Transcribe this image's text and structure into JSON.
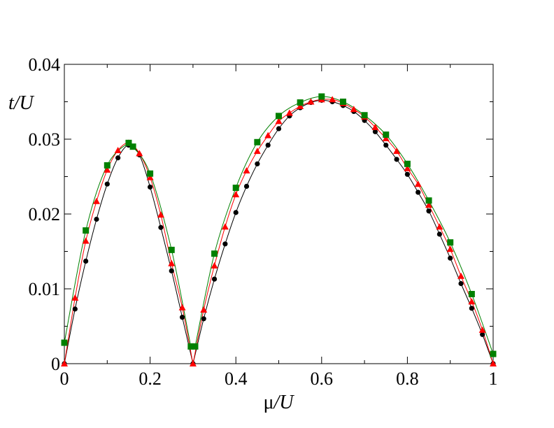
{
  "chart_data": {
    "type": "scatter",
    "xlabel_symbol": "μ",
    "xlabel_rest": "/U",
    "ylabel": "t/U",
    "xlim": [
      0,
      1
    ],
    "ylim": [
      0,
      0.04
    ],
    "x_ticks": [
      0,
      0.2,
      0.4,
      0.6,
      0.8,
      1
    ],
    "x_tick_labels": [
      "0",
      "0.2",
      "0.4",
      "0.6",
      "0.8",
      "1"
    ],
    "y_ticks": [
      0,
      0.01,
      0.02,
      0.03,
      0.04
    ],
    "y_tick_labels": [
      "0",
      "0.01",
      "0.02",
      "0.03",
      "0.04"
    ],
    "grid": false,
    "series": [
      {
        "marker": "circle",
        "color": "#000000",
        "x": [
          0,
          0.025,
          0.05,
          0.075,
          0.1,
          0.125,
          0.15,
          0.175,
          0.2,
          0.225,
          0.25,
          0.275,
          0.3,
          0.325,
          0.35,
          0.375,
          0.4,
          0.425,
          0.45,
          0.475,
          0.5,
          0.525,
          0.55,
          0.575,
          0.6,
          0.625,
          0.65,
          0.675,
          0.7,
          0.725,
          0.75,
          0.775,
          0.8,
          0.825,
          0.85,
          0.875,
          0.9,
          0.925,
          0.95,
          0.975,
          1.0
        ],
        "y": [
          0,
          0.0073,
          0.0137,
          0.0193,
          0.024,
          0.0275,
          0.0292,
          0.0279,
          0.0236,
          0.0182,
          0.0124,
          0.0062,
          0,
          0.006,
          0.0113,
          0.016,
          0.0202,
          0.0237,
          0.0267,
          0.0292,
          0.0314,
          0.0331,
          0.0342,
          0.0349,
          0.0352,
          0.035,
          0.0345,
          0.0337,
          0.0325,
          0.031,
          0.0292,
          0.0273,
          0.0253,
          0.0229,
          0.0204,
          0.0173,
          0.0141,
          0.0107,
          0.0074,
          0.0039,
          0
        ]
      },
      {
        "marker": "triangle",
        "color": "#ff0000",
        "x": [
          0,
          0.025,
          0.05,
          0.075,
          0.1,
          0.125,
          0.15,
          0.175,
          0.2,
          0.225,
          0.25,
          0.275,
          0.3,
          0.325,
          0.35,
          0.375,
          0.4,
          0.425,
          0.45,
          0.475,
          0.5,
          0.525,
          0.55,
          0.575,
          0.6,
          0.625,
          0.65,
          0.675,
          0.7,
          0.725,
          0.75,
          0.775,
          0.8,
          0.825,
          0.85,
          0.875,
          0.9,
          0.925,
          0.95,
          0.975,
          1.0
        ],
        "y": [
          0,
          0.0088,
          0.0164,
          0.0217,
          0.0259,
          0.0285,
          0.0295,
          0.0281,
          0.0249,
          0.0199,
          0.0134,
          0.0075,
          0,
          0.0072,
          0.0131,
          0.0183,
          0.0226,
          0.0258,
          0.0284,
          0.0305,
          0.0324,
          0.0335,
          0.0344,
          0.035,
          0.0353,
          0.0353,
          0.0348,
          0.034,
          0.033,
          0.0316,
          0.0301,
          0.0284,
          0.0261,
          0.024,
          0.0212,
          0.0183,
          0.0153,
          0.0117,
          0.0083,
          0.0045,
          0
        ]
      },
      {
        "marker": "square",
        "color": "#008000",
        "x": [
          0,
          0.05,
          0.1,
          0.15,
          0.16,
          0.2,
          0.25,
          0.295,
          0.305,
          0.35,
          0.4,
          0.45,
          0.5,
          0.55,
          0.6,
          0.65,
          0.7,
          0.75,
          0.8,
          0.85,
          0.9,
          0.95,
          1.0
        ],
        "y": [
          0.0028,
          0.0178,
          0.0265,
          0.0295,
          0.029,
          0.0254,
          0.0152,
          0.0023,
          0.0023,
          0.0147,
          0.0235,
          0.0296,
          0.0331,
          0.0349,
          0.0357,
          0.035,
          0.0332,
          0.0306,
          0.0267,
          0.0218,
          0.0162,
          0.0093,
          0.0013
        ]
      }
    ]
  }
}
